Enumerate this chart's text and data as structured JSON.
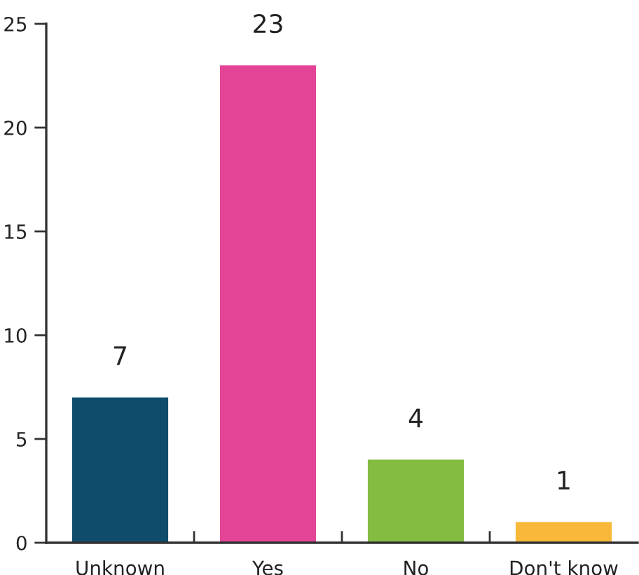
{
  "chart_data": {
    "type": "bar",
    "categories": [
      "Unknown",
      "Yes",
      "No",
      "Don't know"
    ],
    "values": [
      7,
      23,
      4,
      1
    ],
    "colors": [
      "#0f4c6b",
      "#e44496",
      "#84bb41",
      "#f8b83a"
    ],
    "ylim": [
      0,
      25
    ],
    "yticks": [
      0,
      5,
      10,
      15,
      20,
      25
    ],
    "grid": false,
    "legend": false,
    "data_labels": true
  }
}
